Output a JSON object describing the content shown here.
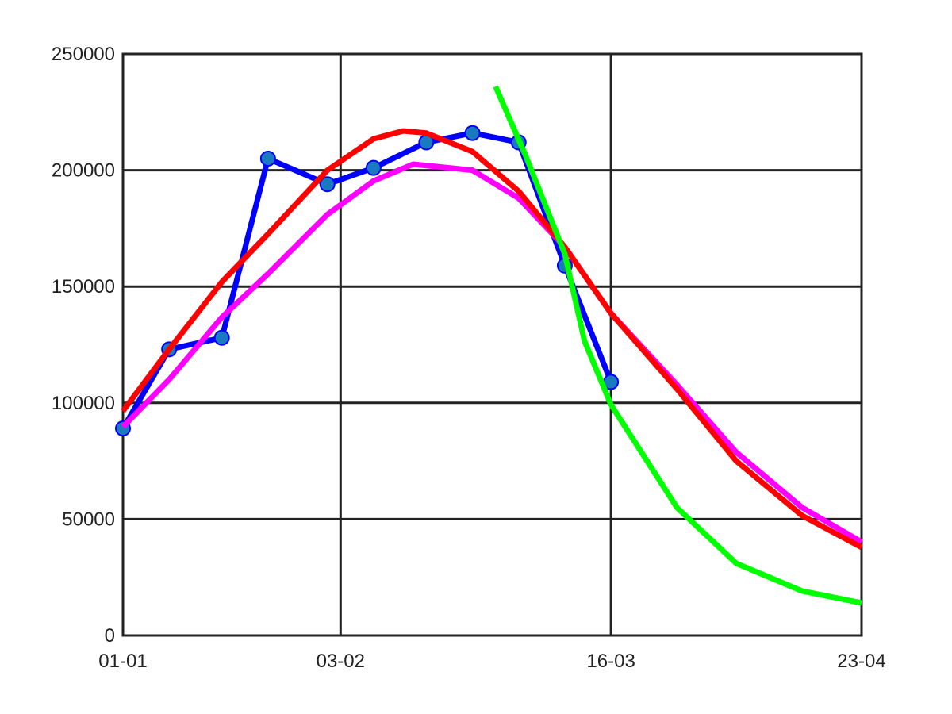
{
  "chart_data": {
    "type": "line",
    "xlim": [
      0,
      112
    ],
    "xticks": [
      {
        "value": 0,
        "label": "01-01"
      },
      {
        "value": 33,
        "label": "03-02"
      },
      {
        "value": 74,
        "label": "16-03"
      },
      {
        "value": 112,
        "label": "23-04"
      }
    ],
    "ylim": [
      0,
      250000
    ],
    "yticks": [
      0,
      50000,
      100000,
      150000,
      200000,
      250000
    ],
    "grid": true,
    "series": [
      {
        "color": "#0000ff",
        "marker_color": "#1a7abf",
        "markers": true,
        "x": [
          0,
          7,
          15,
          22,
          31,
          38,
          46,
          53,
          60,
          67,
          74
        ],
        "values": [
          89000,
          123000,
          128000,
          205000,
          194000,
          201000,
          212000,
          216000,
          212000,
          159000,
          109000
        ]
      },
      {
        "color": "#ff00ff",
        "markers": false,
        "x": [
          0,
          7,
          15,
          22,
          31,
          38,
          44,
          53,
          60,
          67,
          74,
          84,
          93,
          103,
          112
        ],
        "values": [
          89700,
          110000,
          136800,
          155500,
          181000,
          195400,
          202600,
          200000,
          188000,
          167000,
          138500,
          107800,
          78800,
          55000,
          40200
        ]
      },
      {
        "color": "#ff0000",
        "markers": false,
        "x": [
          0,
          7,
          15,
          22,
          31,
          38,
          42.5,
          46,
          53,
          60,
          67,
          74,
          84,
          93,
          103,
          112
        ],
        "values": [
          96500,
          123000,
          152000,
          172600,
          200000,
          213500,
          216900,
          216000,
          208000,
          191000,
          167000,
          138500,
          106000,
          75000,
          51500,
          37900
        ]
      },
      {
        "color": "#00ff00",
        "markers": false,
        "x": [
          56.5,
          61,
          67,
          70,
          74,
          84,
          93,
          103,
          112
        ],
        "values": [
          236000,
          206700,
          164000,
          126500,
          99200,
          55000,
          31000,
          19100,
          14000
        ]
      }
    ]
  }
}
